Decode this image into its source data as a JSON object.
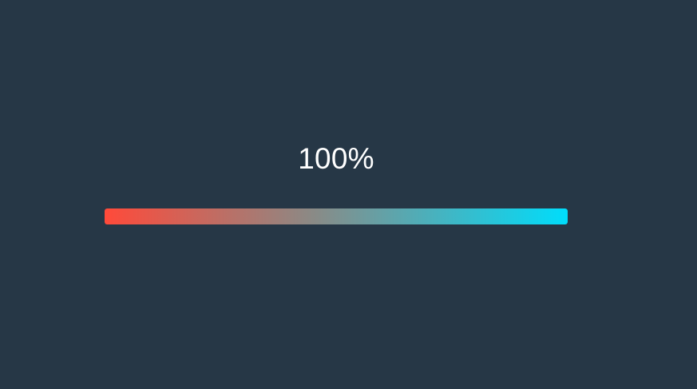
{
  "progress": {
    "label": "100%",
    "fraction": 1.0,
    "gradient_start_color": "#ff4a3a",
    "gradient_mid_color": "#8a8a86",
    "gradient_end_color": "#00ddfb"
  },
  "colors": {
    "background": "#263746",
    "text": "#ffffff"
  }
}
